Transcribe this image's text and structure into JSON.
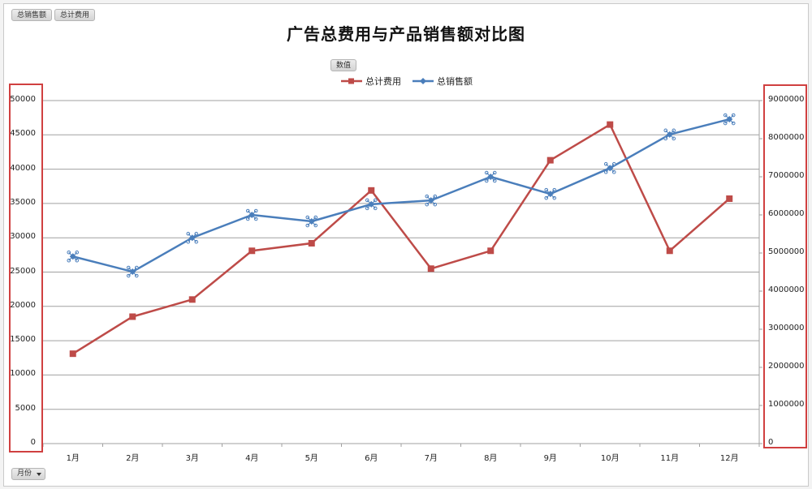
{
  "field_buttons": {
    "top": [
      {
        "label": "总销售额"
      },
      {
        "label": "总计费用"
      }
    ],
    "values_button": "数值",
    "axis_filter": "月份"
  },
  "colors": {
    "expense": "#be4b48",
    "sales": "#4a7ebb",
    "highlight": "#d04040",
    "grid": "#a0a0a0"
  },
  "chart_data": {
    "type": "line",
    "title": "广告总费用与产品销售额对比图",
    "xlabel": "",
    "ylabel": "",
    "categories": [
      "1月",
      "2月",
      "3月",
      "4月",
      "5月",
      "6月",
      "7月",
      "8月",
      "9月",
      "10月",
      "11月",
      "12月"
    ],
    "series": [
      {
        "name": "总计费用",
        "axis": "left",
        "marker": "square",
        "values": [
          13100,
          18500,
          21000,
          28100,
          29200,
          36900,
          25500,
          28100,
          41300,
          46500,
          28100,
          35700
        ]
      },
      {
        "name": "总销售额",
        "axis": "right",
        "marker": "diamond",
        "values": [
          4910000,
          4510000,
          5400000,
          6000000,
          5830000,
          6280000,
          6380000,
          7000000,
          6550000,
          7230000,
          8110000,
          8510000
        ]
      }
    ],
    "y_left": {
      "ylim": [
        0,
        50000
      ],
      "ticks": [
        "50000",
        "45000",
        "40000",
        "35000",
        "30000",
        "25000",
        "20000",
        "15000",
        "10000",
        "5000",
        "0"
      ]
    },
    "y_right": {
      "ylim": [
        0,
        9000000
      ],
      "ticks": [
        "9000000",
        "8000000",
        "7000000",
        "6000000",
        "5000000",
        "4000000",
        "3000000",
        "2000000",
        "1000000",
        "0"
      ]
    },
    "legend": [
      "总计费用",
      "总销售额"
    ],
    "legend_position": "top",
    "grid": true
  }
}
